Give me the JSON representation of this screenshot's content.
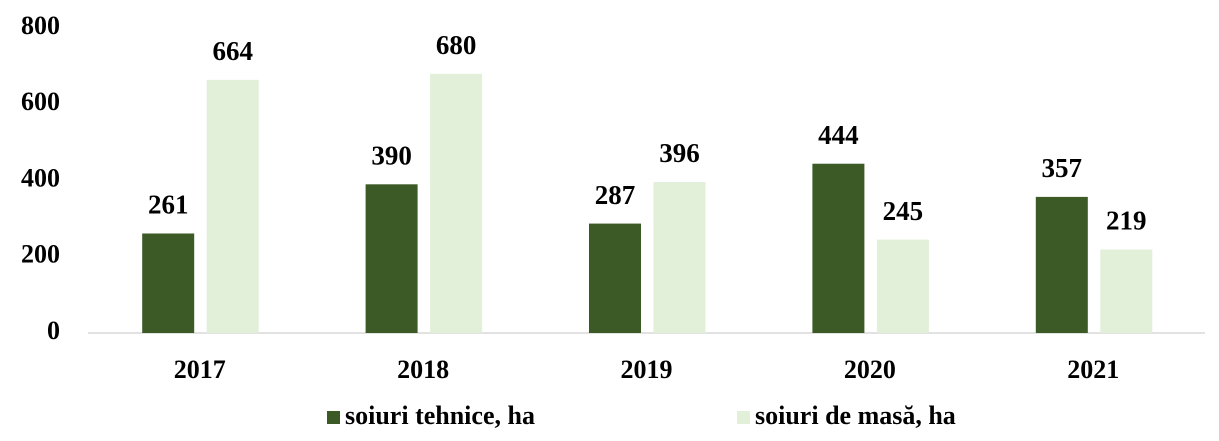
{
  "chart_data": {
    "type": "bar",
    "categories": [
      "2017",
      "2018",
      "2019",
      "2020",
      "2021"
    ],
    "series": [
      {
        "name": "soiuri tehnice, ha",
        "color": "#3b5a26",
        "values": [
          261,
          390,
          287,
          444,
          357
        ]
      },
      {
        "name": "soiuri de masă, ha",
        "color": "#e2efd9",
        "values": [
          664,
          680,
          396,
          245,
          219
        ]
      }
    ],
    "ylim": [
      0,
      800
    ],
    "yticks": [
      0,
      200,
      400,
      600,
      800
    ],
    "grid": false,
    "legend": "bottom"
  }
}
